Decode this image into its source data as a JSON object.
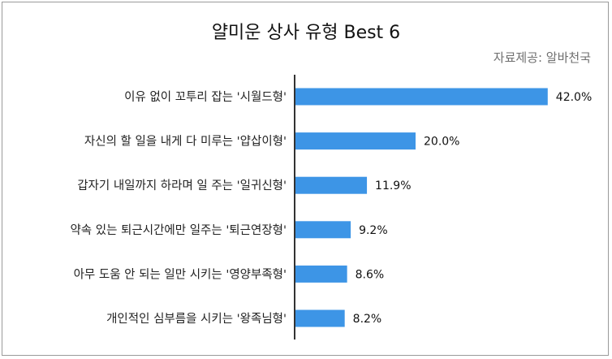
{
  "header": {
    "title": "얄미운 상사 유형 Best 6",
    "source": "자료제공: 알바천국"
  },
  "chart_data": {
    "type": "bar",
    "orientation": "horizontal",
    "title": "얄미운 상사 유형 Best 6",
    "categories": [
      "이유 없이 꼬투리 잡는 '시월드형'",
      "자신의 할 일을 내게 다 미루는 '얍삽이형'",
      "갑자기 내일까지 하라며 일 주는 '일귀신형'",
      "약속 있는 퇴근시간에만 일주는 '퇴근연장형'",
      "아무 도움 안 되는 일만 시키는 '영양부족형'",
      "개인적인 심부름을 시키는 '왕족님형'"
    ],
    "values": [
      42.0,
      20.0,
      11.9,
      9.2,
      8.6,
      8.2
    ],
    "value_labels": [
      "42.0%",
      "20.0%",
      "11.9%",
      "9.2%",
      "8.6%",
      "8.2%"
    ],
    "unit": "%",
    "bar_color": "#3d95e6",
    "axis_color": "#333333",
    "grid": false,
    "legend": "none"
  }
}
